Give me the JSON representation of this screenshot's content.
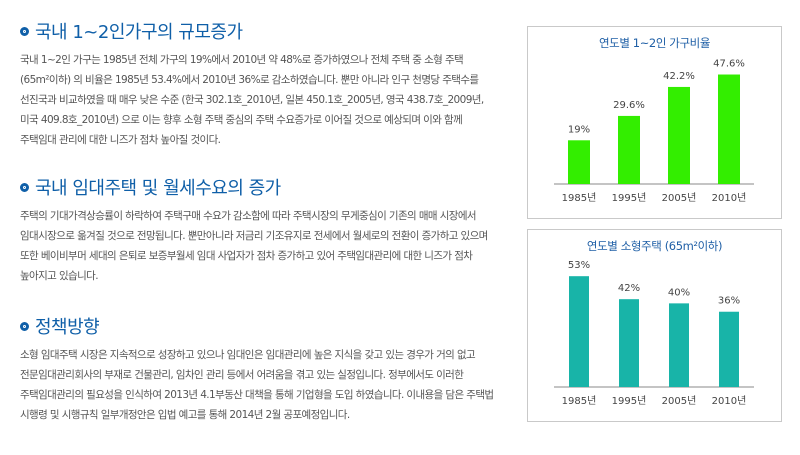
{
  "sections": [
    {
      "title": "국내 1~2인가구의 규모증가",
      "body": "국내 1~2인 가구는 1985년 전체 가구의 19%에서 2010년 약 48%로 증가하였으나 전체 주택 중 소형 주택 (65m²이하) 의 비율은 1985년 53.4%에서 2010년 36%로 감소하였습니다. 뿐만 아니라 인구 천명당 주택수를 선진국과 비교하였을 때 매우 낮은 수준 (한국 302.1호_2010년, 일본 450.1호_2005년, 영국 438.7호_2009년, 미국 409.8호_2010년) 으로 이는 향후 소형 주택 중심의 주택 수요증가로 이어질 것으로 예상되며 이와 함께 주택임대 관리에 대한 니즈가 점차 높아질 것이다."
    },
    {
      "title": "국내 임대주택 및 월세수요의 증가",
      "body": "주택의 기대가격상승률이 하락하여 주택구매 수요가 감소함에 따라 주택시장의 무게중심이 기존의 매매 시장에서 임대시장으로 옮겨질 것으로 전망됩니다. 뿐만아니라 저금리 기조유지로 전세에서 월세로의 전환이 증가하고 있으며 또한 베이비부머 세대의 은퇴로 보증부월세 임대 사업자가 점차 증가하고 있어 주택임대관리에 대한 니즈가 점차 높아지고 있습니다."
    },
    {
      "title": "정책방향",
      "body": "소형 임대주택 시장은 지속적으로 성장하고 있으나 임대인은 임대관리에 높은 지식을 갖고 있는 경우가 거의 없고 전문임대관리회사의 부재로 건물관리, 임차인 관리 등에서 어려움을 겪고 있는 실정입니다. 정부에서도 이러한 주택임대관리의 필요성을 인식하여 2013년 4.1부동산 대책을 통해 기업형을 도입 하였습니다. 이내용을 담은 주택법 시행령 및 시행규칙 일부개정안은 입법 예고를 통해 2014년 2월 공포예정입니다."
    }
  ],
  "chart_data": [
    {
      "type": "bar",
      "title": "연도별 1~2인 가구비율",
      "categories": [
        "1985년",
        "1995년",
        "2005년",
        "2010년"
      ],
      "values": [
        19,
        29.6,
        42.2,
        47.6
      ],
      "value_labels": [
        "19%",
        "29.6%",
        "42.2%",
        "47.6%"
      ],
      "ylim": [
        0,
        50
      ],
      "color": "#33ee00",
      "grid": false
    },
    {
      "type": "bar",
      "title": "연도별 소형주택 (65m²이하)",
      "categories": [
        "1985년",
        "1995년",
        "2005년",
        "2010년"
      ],
      "values": [
        53,
        42,
        40,
        36
      ],
      "value_labels": [
        "53%",
        "42%",
        "40%",
        "36%"
      ],
      "ylim": [
        0,
        55
      ],
      "color": "#18b4a8",
      "grid": false
    }
  ],
  "colors": {
    "heading": "#0f5fa8",
    "chart_title": "#1f5fa6"
  }
}
